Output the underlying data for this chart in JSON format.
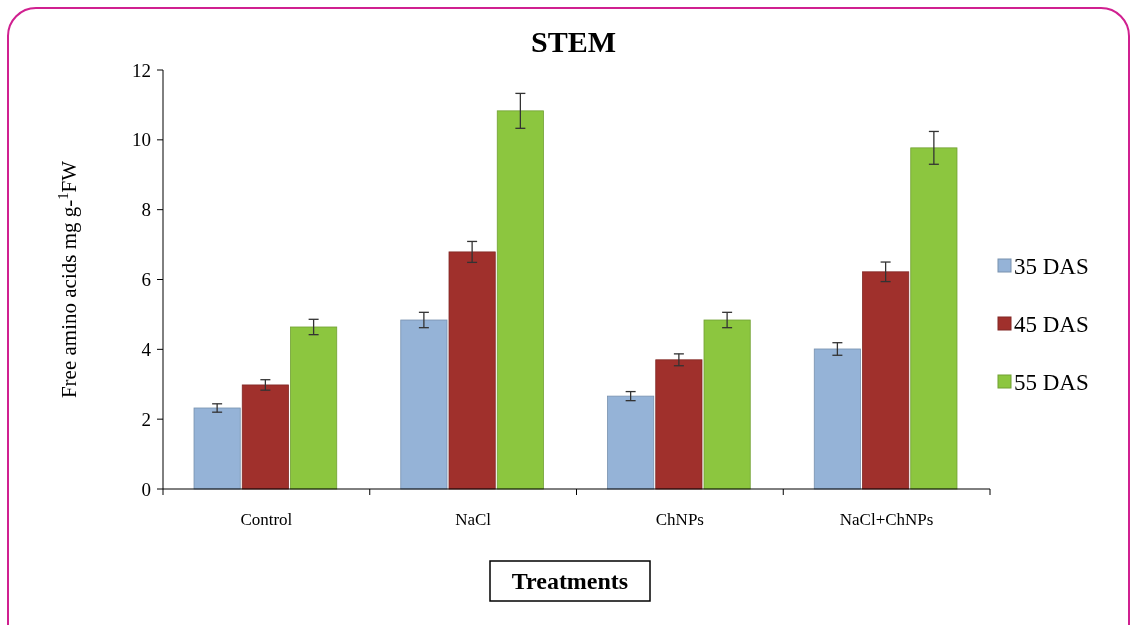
{
  "chart_data": {
    "type": "bar",
    "title": "STEM",
    "xlabel": "Treatments",
    "ylabel": "Free amino acids mg g-$^{1}$FW",
    "categories": [
      "Control",
      "NaCl",
      "ChNPs",
      "NaCl+ChNPs"
    ],
    "series": [
      {
        "name": "35 DAS",
        "color": "#95b3d7",
        "values": [
          2.32,
          4.84,
          2.66,
          4.01
        ],
        "errors": [
          0.12,
          0.22,
          0.13,
          0.18
        ]
      },
      {
        "name": "45 DAS",
        "color": "#a0302c",
        "values": [
          2.98,
          6.79,
          3.7,
          6.22
        ],
        "errors": [
          0.15,
          0.3,
          0.17,
          0.28
        ]
      },
      {
        "name": "55 DAS",
        "color": "#8cc63f",
        "values": [
          4.64,
          10.83,
          4.84,
          9.77
        ],
        "errors": [
          0.22,
          0.5,
          0.22,
          0.47
        ]
      }
    ],
    "ylim": [
      0,
      12
    ],
    "yticks": [
      0,
      2,
      4,
      6,
      8,
      10,
      12
    ],
    "legend": "right",
    "grid": false
  }
}
